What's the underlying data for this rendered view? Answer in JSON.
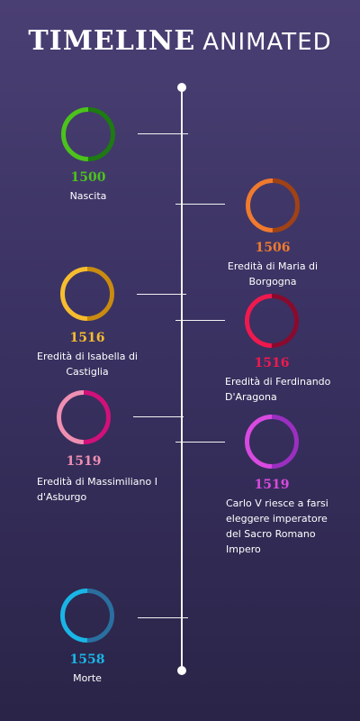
{
  "header": {
    "title_bold": "TIMELINE",
    "title_light": "ANIMATED"
  },
  "events": [
    {
      "year": "1500",
      "label": "Nascita",
      "color": "#4cc31c",
      "color2": "#1e7a12"
    },
    {
      "year": "1506",
      "label": "Eredità di Maria di Borgogna",
      "color": "#f07a2e",
      "color2": "#a04216"
    },
    {
      "year": "1516",
      "label": "Eredità di Isabella di Castiglia",
      "color": "#f7bd2f",
      "color2": "#c98b10"
    },
    {
      "year": "1516",
      "label": "Eredità di Ferdinando D'Aragona",
      "color": "#f0194e",
      "color2": "#8a0a2e"
    },
    {
      "year": "1519",
      "label": "Eredità di Massimiliano I d'Asburgo",
      "color": "#ef8fb2",
      "color2": "#d1107a"
    },
    {
      "year": "1519",
      "label": "Carlo V riesce a farsi eleggere imperatore del Sacro Romano Impero",
      "color": "#d84ae0",
      "color2": "#9a2fc0"
    },
    {
      "year": "1558",
      "label": "Morte",
      "color": "#19b5e6",
      "color2": "#2a6fa0"
    }
  ]
}
